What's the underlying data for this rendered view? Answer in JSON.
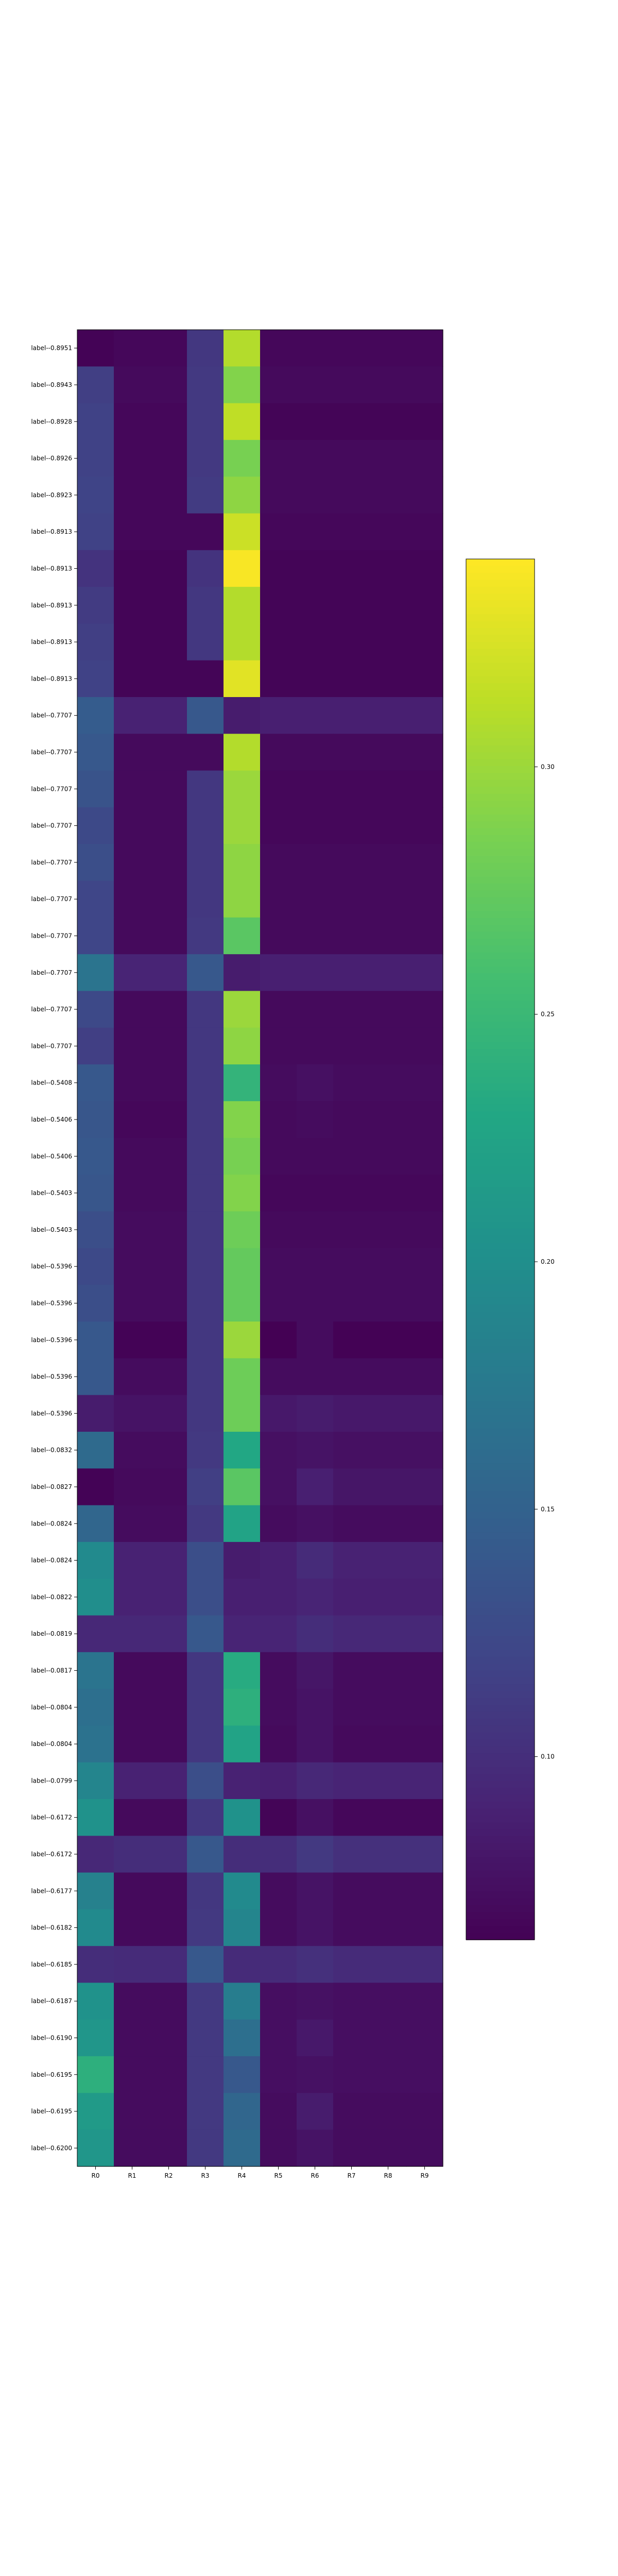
{
  "chart_data": {
    "type": "heatmap",
    "title": "",
    "xlabel": "",
    "ylabel": "",
    "columns": [
      "R0",
      "R1",
      "R2",
      "R3",
      "R4",
      "R5",
      "R6",
      "R7",
      "R8",
      "R9"
    ],
    "rows": [
      "label--0.8951",
      "label--0.8943",
      "label--0.8928",
      "label--0.8926",
      "label--0.8923",
      "label--0.8913",
      "label--0.8913",
      "label--0.8913",
      "label--0.8913",
      "label--0.8913",
      "label--0.7707",
      "label--0.7707",
      "label--0.7707",
      "label--0.7707",
      "label--0.7707",
      "label--0.7707",
      "label--0.7707",
      "label--0.7707",
      "label--0.7707",
      "label--0.7707",
      "label--0.5408",
      "label--0.5406",
      "label--0.5406",
      "label--0.5403",
      "label--0.5403",
      "label--0.5396",
      "label--0.5396",
      "label--0.5396",
      "label--0.5396",
      "label--0.5396",
      "label--0.0832",
      "label--0.0827",
      "label--0.0824",
      "label--0.0824",
      "label--0.0822",
      "label--0.0819",
      "label--0.0817",
      "label--0.0804",
      "label--0.0804",
      "label--0.0799",
      "label--0.6172",
      "label--0.6172",
      "label--0.6177",
      "label--0.6182",
      "label--0.6185",
      "label--0.6187",
      "label--0.6190",
      "label--0.6195",
      "label--0.6195",
      "label--0.6200"
    ],
    "values": [
      [
        0.065,
        0.068,
        0.068,
        0.108,
        0.31,
        0.068,
        0.068,
        0.068,
        0.068,
        0.068
      ],
      [
        0.115,
        0.07,
        0.07,
        0.11,
        0.29,
        0.07,
        0.07,
        0.07,
        0.07,
        0.07
      ],
      [
        0.118,
        0.068,
        0.068,
        0.11,
        0.315,
        0.066,
        0.066,
        0.066,
        0.066,
        0.066
      ],
      [
        0.118,
        0.068,
        0.068,
        0.11,
        0.285,
        0.07,
        0.07,
        0.07,
        0.07,
        0.07
      ],
      [
        0.12,
        0.068,
        0.068,
        0.112,
        0.295,
        0.07,
        0.07,
        0.07,
        0.07,
        0.07
      ],
      [
        0.118,
        0.068,
        0.068,
        0.068,
        0.32,
        0.068,
        0.068,
        0.068,
        0.068,
        0.068
      ],
      [
        0.105,
        0.066,
        0.066,
        0.105,
        0.34,
        0.066,
        0.066,
        0.066,
        0.066,
        0.066
      ],
      [
        0.112,
        0.066,
        0.066,
        0.108,
        0.31,
        0.066,
        0.066,
        0.066,
        0.066,
        0.066
      ],
      [
        0.115,
        0.066,
        0.066,
        0.108,
        0.31,
        0.066,
        0.066,
        0.066,
        0.066,
        0.066
      ],
      [
        0.118,
        0.066,
        0.066,
        0.066,
        0.33,
        0.066,
        0.066,
        0.066,
        0.066,
        0.066
      ],
      [
        0.145,
        0.09,
        0.09,
        0.14,
        0.085,
        0.088,
        0.088,
        0.088,
        0.088,
        0.088
      ],
      [
        0.14,
        0.07,
        0.07,
        0.07,
        0.31,
        0.07,
        0.07,
        0.07,
        0.07,
        0.07
      ],
      [
        0.135,
        0.07,
        0.07,
        0.108,
        0.3,
        0.068,
        0.068,
        0.068,
        0.068,
        0.068
      ],
      [
        0.125,
        0.07,
        0.07,
        0.108,
        0.3,
        0.068,
        0.068,
        0.068,
        0.068,
        0.068
      ],
      [
        0.13,
        0.07,
        0.07,
        0.108,
        0.295,
        0.07,
        0.07,
        0.07,
        0.07,
        0.07
      ],
      [
        0.122,
        0.07,
        0.07,
        0.108,
        0.295,
        0.07,
        0.07,
        0.07,
        0.07,
        0.07
      ],
      [
        0.122,
        0.07,
        0.07,
        0.11,
        0.27,
        0.07,
        0.07,
        0.07,
        0.07,
        0.07
      ],
      [
        0.17,
        0.092,
        0.092,
        0.14,
        0.085,
        0.088,
        0.088,
        0.088,
        0.088,
        0.088
      ],
      [
        0.125,
        0.07,
        0.07,
        0.108,
        0.3,
        0.07,
        0.07,
        0.07,
        0.07,
        0.07
      ],
      [
        0.115,
        0.07,
        0.07,
        0.108,
        0.295,
        0.07,
        0.07,
        0.07,
        0.07,
        0.07
      ],
      [
        0.14,
        0.07,
        0.07,
        0.108,
        0.245,
        0.072,
        0.075,
        0.072,
        0.072,
        0.072
      ],
      [
        0.138,
        0.068,
        0.068,
        0.108,
        0.29,
        0.07,
        0.072,
        0.07,
        0.07,
        0.07
      ],
      [
        0.14,
        0.07,
        0.07,
        0.108,
        0.285,
        0.07,
        0.07,
        0.07,
        0.07,
        0.07
      ],
      [
        0.138,
        0.07,
        0.07,
        0.108,
        0.29,
        0.068,
        0.068,
        0.068,
        0.068,
        0.068
      ],
      [
        0.13,
        0.072,
        0.072,
        0.108,
        0.28,
        0.07,
        0.07,
        0.07,
        0.07,
        0.07
      ],
      [
        0.125,
        0.072,
        0.072,
        0.108,
        0.275,
        0.072,
        0.072,
        0.072,
        0.072,
        0.072
      ],
      [
        0.13,
        0.072,
        0.072,
        0.108,
        0.275,
        0.072,
        0.072,
        0.072,
        0.072,
        0.072
      ],
      [
        0.14,
        0.065,
        0.065,
        0.108,
        0.3,
        0.062,
        0.072,
        0.064,
        0.064,
        0.064
      ],
      [
        0.14,
        0.072,
        0.072,
        0.108,
        0.28,
        0.072,
        0.072,
        0.072,
        0.072,
        0.072
      ],
      [
        0.085,
        0.078,
        0.078,
        0.108,
        0.28,
        0.082,
        0.085,
        0.082,
        0.082,
        0.082
      ],
      [
        0.16,
        0.072,
        0.072,
        0.11,
        0.23,
        0.075,
        0.078,
        0.075,
        0.075,
        0.075
      ],
      [
        0.065,
        0.07,
        0.07,
        0.115,
        0.27,
        0.075,
        0.088,
        0.08,
        0.08,
        0.08
      ],
      [
        0.155,
        0.072,
        0.072,
        0.11,
        0.225,
        0.072,
        0.075,
        0.072,
        0.072,
        0.072
      ],
      [
        0.195,
        0.09,
        0.09,
        0.13,
        0.085,
        0.088,
        0.098,
        0.09,
        0.09,
        0.09
      ],
      [
        0.2,
        0.09,
        0.09,
        0.13,
        0.088,
        0.088,
        0.092,
        0.088,
        0.088,
        0.088
      ],
      [
        0.095,
        0.095,
        0.095,
        0.14,
        0.092,
        0.092,
        0.1,
        0.095,
        0.095,
        0.095
      ],
      [
        0.17,
        0.07,
        0.07,
        0.108,
        0.235,
        0.072,
        0.08,
        0.072,
        0.072,
        0.072
      ],
      [
        0.165,
        0.07,
        0.07,
        0.108,
        0.24,
        0.072,
        0.078,
        0.072,
        0.072,
        0.072
      ],
      [
        0.168,
        0.07,
        0.07,
        0.108,
        0.225,
        0.07,
        0.078,
        0.07,
        0.07,
        0.07
      ],
      [
        0.19,
        0.09,
        0.09,
        0.13,
        0.09,
        0.088,
        0.095,
        0.092,
        0.092,
        0.092
      ],
      [
        0.205,
        0.07,
        0.07,
        0.108,
        0.205,
        0.066,
        0.075,
        0.068,
        0.068,
        0.068
      ],
      [
        0.095,
        0.1,
        0.1,
        0.14,
        0.1,
        0.1,
        0.11,
        0.102,
        0.102,
        0.102
      ],
      [
        0.185,
        0.07,
        0.07,
        0.108,
        0.195,
        0.072,
        0.078,
        0.072,
        0.072,
        0.072
      ],
      [
        0.195,
        0.07,
        0.07,
        0.11,
        0.19,
        0.072,
        0.078,
        0.072,
        0.072,
        0.072
      ],
      [
        0.1,
        0.098,
        0.098,
        0.14,
        0.098,
        0.098,
        0.102,
        0.098,
        0.098,
        0.098
      ],
      [
        0.205,
        0.072,
        0.072,
        0.11,
        0.18,
        0.074,
        0.076,
        0.074,
        0.074,
        0.074
      ],
      [
        0.21,
        0.072,
        0.072,
        0.11,
        0.165,
        0.074,
        0.082,
        0.074,
        0.074,
        0.074
      ],
      [
        0.24,
        0.072,
        0.072,
        0.11,
        0.14,
        0.074,
        0.076,
        0.074,
        0.074,
        0.074
      ],
      [
        0.215,
        0.072,
        0.072,
        0.11,
        0.155,
        0.072,
        0.085,
        0.072,
        0.072,
        0.072
      ],
      [
        0.21,
        0.072,
        0.072,
        0.11,
        0.16,
        0.072,
        0.078,
        0.072,
        0.072,
        0.072
      ]
    ],
    "color_range": [
      0.063,
      0.342
    ],
    "colorbar_ticks": [
      0.1,
      0.15,
      0.2,
      0.25,
      0.3
    ],
    "colorbar_tick_labels": [
      "0.10",
      "0.15",
      "0.20",
      "0.25",
      "0.30"
    ],
    "colormap": "viridis"
  }
}
